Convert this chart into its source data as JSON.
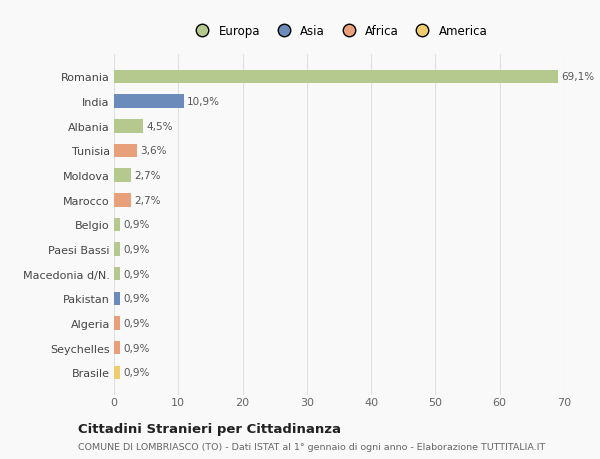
{
  "countries": [
    "Romania",
    "India",
    "Albania",
    "Tunisia",
    "Moldova",
    "Marocco",
    "Belgio",
    "Paesi Bassi",
    "Macedonia d/N.",
    "Pakistan",
    "Algeria",
    "Seychelles",
    "Brasile"
  ],
  "values": [
    69.1,
    10.9,
    4.5,
    3.6,
    2.7,
    2.7,
    0.9,
    0.9,
    0.9,
    0.9,
    0.9,
    0.9,
    0.9
  ],
  "labels": [
    "69,1%",
    "10,9%",
    "4,5%",
    "3,6%",
    "2,7%",
    "2,7%",
    "0,9%",
    "0,9%",
    "0,9%",
    "0,9%",
    "0,9%",
    "0,9%",
    "0,9%"
  ],
  "colors": [
    "#b5c98e",
    "#6b8cba",
    "#b5c98e",
    "#e8a07a",
    "#b5c98e",
    "#e8a07a",
    "#b5c98e",
    "#b5c98e",
    "#b5c98e",
    "#6b8cba",
    "#e8a07a",
    "#e8a07a",
    "#f0cc6e"
  ],
  "legend_entries": [
    "Europa",
    "Asia",
    "Africa",
    "America"
  ],
  "legend_colors": [
    "#b5c98e",
    "#6b8cba",
    "#e8a07a",
    "#f0cc6e"
  ],
  "title": "Cittadini Stranieri per Cittadinanza",
  "subtitle": "COMUNE DI LOMBRIASCO (TO) - Dati ISTAT al 1° gennaio di ogni anno - Elaborazione TUTTITALIA.IT",
  "xlim": [
    0,
    70
  ],
  "xticks": [
    0,
    10,
    20,
    30,
    40,
    50,
    60,
    70
  ],
  "background_color": "#f9f9f9",
  "grid_color": "#e0e0e0",
  "bar_height": 0.55
}
